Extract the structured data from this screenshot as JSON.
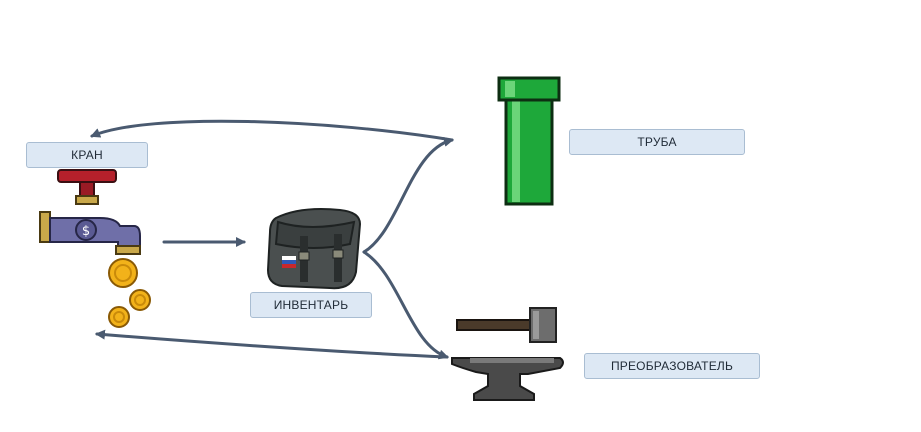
{
  "nodes": {
    "faucet": {
      "label": "КРАН",
      "icon": "faucet-icon"
    },
    "inventory": {
      "label": "ИНВЕНТАРЬ",
      "icon": "bag-icon"
    },
    "pipe": {
      "label": "ТРУБА",
      "icon": "pipe-icon"
    },
    "converter": {
      "label": "ПРЕОБРАЗОВАТЕЛЬ",
      "icon": "anvil-icon"
    }
  },
  "edges": [
    {
      "from": "faucet",
      "to": "inventory"
    },
    {
      "from": "inventory",
      "to": "pipe"
    },
    {
      "from": "inventory",
      "to": "converter"
    },
    {
      "from": "pipe",
      "to": "faucet"
    },
    {
      "from": "converter",
      "to": "faucet"
    }
  ],
  "colors": {
    "arrow": "#4a5a70",
    "label_bg": "#dde8f4",
    "pipe_green": "#1ea83a",
    "coin": "#f2b21a"
  }
}
